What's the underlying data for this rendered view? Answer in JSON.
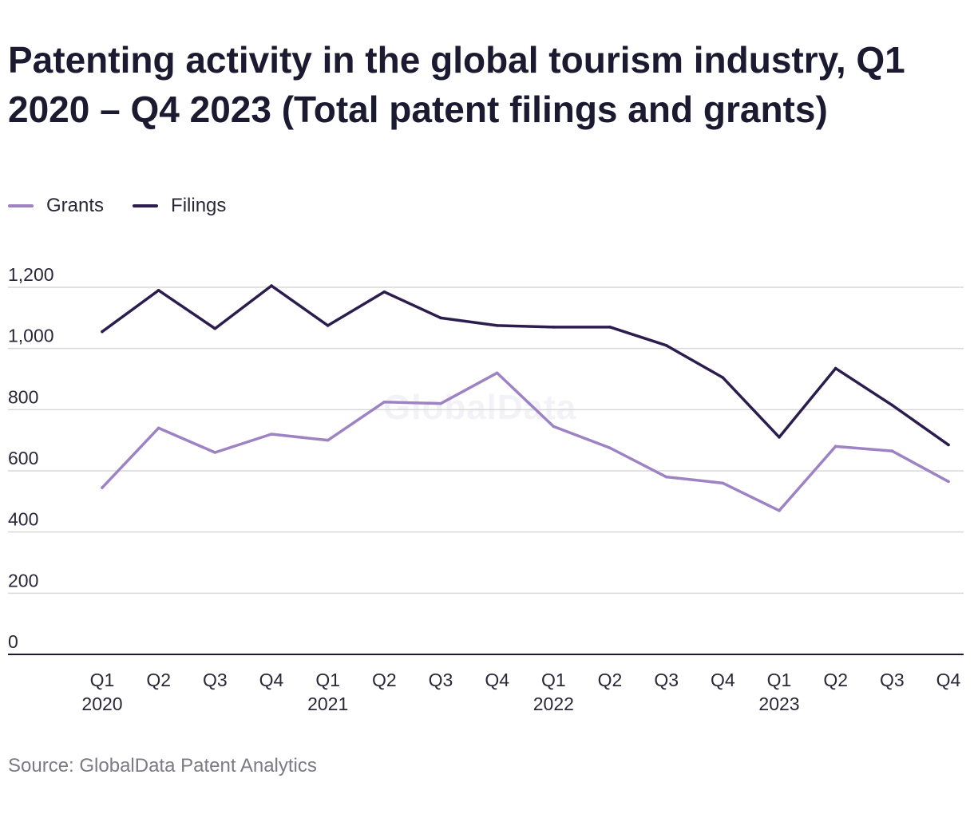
{
  "title": "Patenting activity in the global tourism industry, Q1 2020 – Q4 2023 (Total patent filings and grants)",
  "source": "Source: GlobalData Patent Analytics",
  "watermark": "GlobalData",
  "colors": {
    "grants": "#9d82c4",
    "filings": "#2b1d4e",
    "grid": "#d9d9d9",
    "axis": "#1b1a30"
  },
  "chart_data": {
    "type": "line",
    "title": "Patenting activity in the global tourism industry, Q1 2020 – Q4 2023 (Total patent filings and grants)",
    "xlabel": "",
    "ylabel": "",
    "ylim": [
      0,
      1200
    ],
    "yticks": [
      0,
      200,
      400,
      600,
      800,
      1000,
      1200
    ],
    "ytick_labels": [
      "0",
      "200",
      "400",
      "600",
      "800",
      "1,000",
      "1,200"
    ],
    "categories": [
      "Q1",
      "Q2",
      "Q3",
      "Q4",
      "Q1",
      "Q2",
      "Q3",
      "Q4",
      "Q1",
      "Q2",
      "Q3",
      "Q4",
      "Q1",
      "Q2",
      "Q3",
      "Q4"
    ],
    "years": [
      "2020",
      "",
      "",
      "",
      "2021",
      "",
      "",
      "",
      "2022",
      "",
      "",
      "",
      "2023",
      "",
      "",
      ""
    ],
    "legend": "top-left",
    "series": [
      {
        "name": "Grants",
        "color": "#9d82c4",
        "values": [
          545,
          740,
          660,
          720,
          700,
          825,
          820,
          920,
          745,
          675,
          580,
          560,
          470,
          680,
          665,
          565
        ]
      },
      {
        "name": "Filings",
        "color": "#2b1d4e",
        "values": [
          1055,
          1190,
          1065,
          1205,
          1075,
          1185,
          1100,
          1075,
          1070,
          1070,
          1010,
          905,
          710,
          935,
          815,
          685
        ]
      }
    ]
  }
}
